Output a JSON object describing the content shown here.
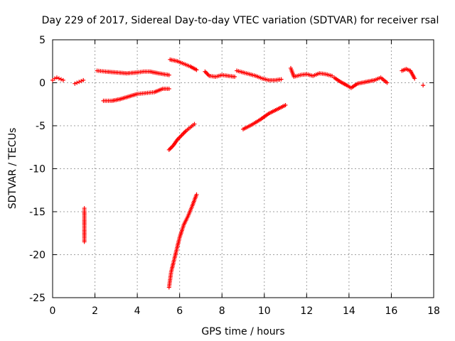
{
  "chart_data": {
    "type": "scatter",
    "title": "Day 229 of 2017, Sidereal Day-to-day VTEC variation (SDTVAR) for receiver rsal",
    "xlabel": "GPS time / hours",
    "ylabel": "SDTVAR / TECUs",
    "xlim": [
      0,
      18
    ],
    "ylim": [
      -25,
      5
    ],
    "xticks": [
      0,
      2,
      4,
      6,
      8,
      10,
      12,
      14,
      16,
      18
    ],
    "yticks": [
      -25,
      -20,
      -15,
      -10,
      -5,
      0,
      5
    ],
    "grid": true,
    "marker": "+",
    "color": "#ff0000",
    "series": [
      {
        "x": [
          0.0,
          0.1,
          0.2,
          0.3,
          0.4,
          0.5
        ],
        "y": [
          0.3,
          0.5,
          0.6,
          0.5,
          0.4,
          0.3
        ]
      },
      {
        "x": [
          1.05,
          1.15,
          1.25,
          1.35,
          1.45
        ],
        "y": [
          -0.1,
          0.0,
          0.1,
          0.2,
          0.3
        ]
      },
      {
        "x": [
          1.5,
          1.5,
          1.5,
          1.5,
          1.5,
          1.5,
          1.5,
          1.5,
          1.5
        ],
        "y": [
          -18.5,
          -18.0,
          -17.5,
          -17.0,
          -16.5,
          -16.0,
          -15.5,
          -15.0,
          -14.6
        ]
      },
      {
        "x": [
          2.1,
          2.5,
          3.0,
          3.5,
          4.0,
          4.3,
          4.6,
          5.0,
          5.5
        ],
        "y": [
          1.4,
          1.3,
          1.2,
          1.1,
          1.2,
          1.3,
          1.3,
          1.1,
          0.9
        ]
      },
      {
        "x": [
          2.4,
          2.8,
          3.2,
          3.6,
          4.0,
          4.4,
          4.8,
          5.2,
          5.5
        ],
        "y": [
          -2.1,
          -2.1,
          -1.9,
          -1.6,
          -1.3,
          -1.2,
          -1.1,
          -0.7,
          -0.7
        ]
      },
      {
        "x": [
          5.5,
          5.6,
          5.8,
          6.0,
          6.2,
          6.4,
          6.6,
          6.8
        ],
        "y": [
          -23.8,
          -22.0,
          -20.0,
          -18.0,
          -16.5,
          -15.5,
          -14.3,
          -13.0
        ]
      },
      {
        "x": [
          5.5,
          5.7,
          5.9,
          6.1,
          6.3,
          6.5,
          6.7
        ],
        "y": [
          -7.8,
          -7.3,
          -6.6,
          -6.1,
          -5.6,
          -5.2,
          -4.8
        ]
      },
      {
        "x": [
          5.55,
          5.9,
          6.2,
          6.5,
          6.8
        ],
        "y": [
          2.7,
          2.5,
          2.2,
          1.9,
          1.5
        ]
      },
      {
        "x": [
          7.2,
          7.4,
          7.7,
          8.0,
          8.3,
          8.6
        ],
        "y": [
          1.3,
          0.8,
          0.7,
          0.9,
          0.8,
          0.7
        ]
      },
      {
        "x": [
          8.7,
          9.0,
          9.3,
          9.6,
          9.9,
          10.2,
          10.5,
          10.8
        ],
        "y": [
          1.4,
          1.2,
          1.0,
          0.8,
          0.5,
          0.3,
          0.3,
          0.4
        ]
      },
      {
        "x": [
          9.0,
          9.4,
          9.8,
          10.2,
          10.6,
          11.0
        ],
        "y": [
          -5.4,
          -4.9,
          -4.3,
          -3.6,
          -3.1,
          -2.6
        ]
      },
      {
        "x": [
          11.25,
          11.4,
          11.7,
          12.0,
          12.3,
          12.6,
          12.9,
          13.2
        ],
        "y": [
          1.7,
          0.7,
          0.9,
          1.0,
          0.8,
          1.1,
          1.0,
          0.8
        ]
      },
      {
        "x": [
          13.3,
          13.6,
          13.9,
          14.1,
          14.4,
          14.8,
          15.2,
          15.5,
          15.8
        ],
        "y": [
          0.6,
          0.1,
          -0.3,
          -0.6,
          -0.1,
          0.1,
          0.3,
          0.6,
          0.0
        ]
      },
      {
        "x": [
          16.5,
          16.7,
          16.9,
          17.1
        ],
        "y": [
          1.4,
          1.6,
          1.4,
          0.5
        ]
      },
      {
        "x": [
          17.5
        ],
        "y": [
          -0.3
        ]
      }
    ]
  }
}
